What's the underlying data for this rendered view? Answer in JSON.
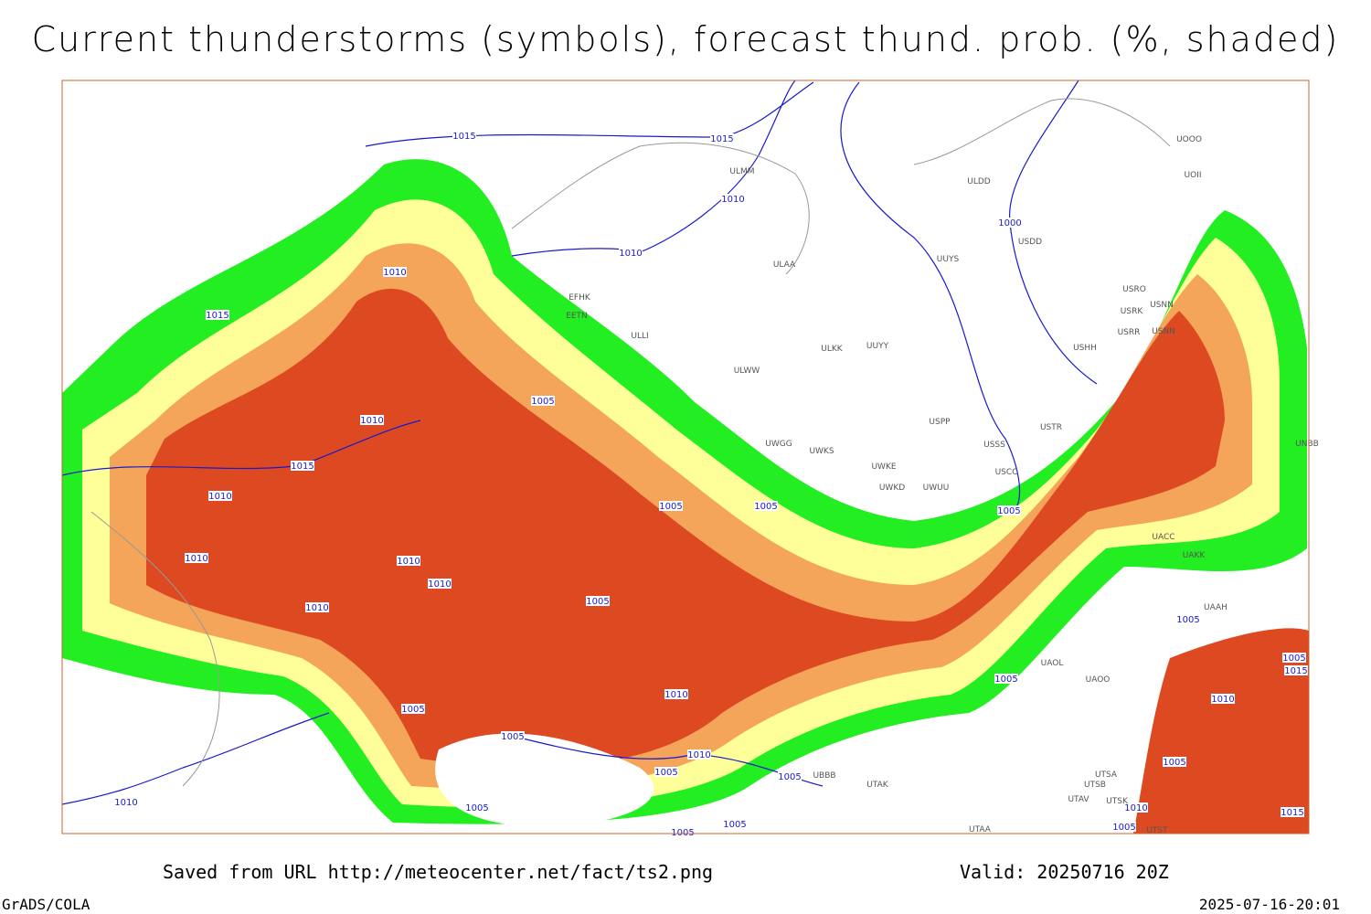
{
  "header": {
    "title": "Current thunderstorms (symbols), forecast thund. prob. (%, shaded)"
  },
  "footer": {
    "source": "Saved from URL http://meteocenter.net/fact/ts2.png",
    "valid": "Valid: 20250716 20Z",
    "software": "GrADS/COLA",
    "timestamp": "2025-07-16-20:01"
  },
  "isobar_labels": [
    "1015",
    "1015",
    "1010",
    "1010",
    "1010",
    "1015",
    "1005",
    "1010",
    "1015",
    "1010",
    "1010",
    "1005",
    "1005",
    "1000",
    "1010",
    "1010",
    "1005",
    "1010",
    "1005",
    "1005",
    "1005",
    "1005",
    "1010",
    "1005",
    "1010",
    "1005",
    "1005",
    "1005",
    "1010",
    "1005",
    "1005",
    "1005",
    "1015",
    "1010",
    "1005",
    "1010",
    "1005",
    "1015"
  ],
  "station_labels": [
    "ULMM",
    "ULDD",
    "UOOO",
    "UOII",
    "USDD",
    "ULAA",
    "UUYS",
    "EFHK",
    "EETN",
    "ULLI",
    "USRO",
    "USRK",
    "USNN",
    "USRR",
    "USNN",
    "USHH",
    "ULKK",
    "UUYY",
    "ULWW",
    "USPP",
    "USTR",
    "UWGG",
    "UWKS",
    "USSS",
    "UWKE",
    "USCC",
    "UWKD",
    "UWUU",
    "UNBB",
    "UACC",
    "UAKK",
    "UAAH",
    "UAOL",
    "UAOO",
    "UBBB",
    "UTAK",
    "UTSA",
    "UTSB",
    "UTAV",
    "UTSK",
    "UTAA",
    "UTST"
  ]
}
